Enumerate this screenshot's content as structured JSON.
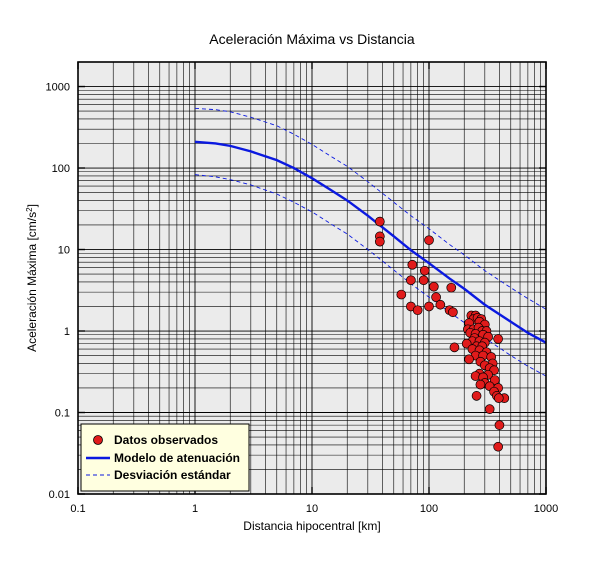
{
  "chart_data": {
    "type": "scatter",
    "title": "Aceleración Máxima vs Distancia",
    "xlabel": "Distancia hipocentral [km]",
    "ylabel_main": "Aceleración Máxima [cm/s",
    "ylabel_sup": "2",
    "ylabel_end": "]",
    "x_scale": "log",
    "y_scale": "log",
    "xlim": [
      0.1,
      1000
    ],
    "ylim": [
      0.01,
      2000
    ],
    "x_ticks": [
      {
        "value": 0.1,
        "label": "0.1"
      },
      {
        "value": 1,
        "label": "1"
      },
      {
        "value": 10,
        "label": "10"
      },
      {
        "value": 100,
        "label": "100"
      },
      {
        "value": 1000,
        "label": "1000"
      }
    ],
    "y_ticks": [
      {
        "value": 0.01,
        "label": "0.01"
      },
      {
        "value": 0.1,
        "label": "0.1"
      },
      {
        "value": 1,
        "label": "1"
      },
      {
        "value": 10,
        "label": "10"
      },
      {
        "value": 100,
        "label": "100"
      },
      {
        "value": 1000,
        "label": "1000"
      }
    ],
    "grid": true,
    "legend_position": "bottom-left",
    "colors": {
      "plot_background": "#ebebeb",
      "grid": "#000000",
      "observed": "#e01b1b",
      "model": "#0b19e0",
      "deviation": "#0b19e0",
      "legend_background": "#ffffe0"
    },
    "series": [
      {
        "name": "Datos observados",
        "kind": "scatter",
        "points": [
          [
            38,
            22
          ],
          [
            38,
            14.5
          ],
          [
            38,
            12.5
          ],
          [
            100,
            13
          ],
          [
            72,
            6.5
          ],
          [
            92,
            5.5
          ],
          [
            70,
            4.2
          ],
          [
            90,
            4.2
          ],
          [
            110,
            3.5
          ],
          [
            155,
            3.4
          ],
          [
            58,
            2.8
          ],
          [
            115,
            2.6
          ],
          [
            125,
            2.1
          ],
          [
            70,
            2.0
          ],
          [
            100,
            2.0
          ],
          [
            80,
            1.8
          ],
          [
            150,
            1.8
          ],
          [
            160,
            1.7
          ],
          [
            230,
            1.55
          ],
          [
            250,
            1.55
          ],
          [
            240,
            1.4
          ],
          [
            260,
            1.45
          ],
          [
            280,
            1.4
          ],
          [
            220,
            1.25
          ],
          [
            270,
            1.3
          ],
          [
            300,
            1.2
          ],
          [
            215,
            1.05
          ],
          [
            240,
            1.05
          ],
          [
            265,
            1.1
          ],
          [
            285,
            1.0
          ],
          [
            310,
            1.0
          ],
          [
            225,
            0.95
          ],
          [
            250,
            0.92
          ],
          [
            290,
            0.9
          ],
          [
            320,
            0.85
          ],
          [
            245,
            0.82
          ],
          [
            390,
            0.8
          ],
          [
            235,
            0.75
          ],
          [
            270,
            0.75
          ],
          [
            300,
            0.72
          ],
          [
            210,
            0.7
          ],
          [
            255,
            0.65
          ],
          [
            285,
            0.65
          ],
          [
            165,
            0.63
          ],
          [
            235,
            0.6
          ],
          [
            270,
            0.58
          ],
          [
            310,
            0.55
          ],
          [
            250,
            0.5
          ],
          [
            290,
            0.5
          ],
          [
            340,
            0.48
          ],
          [
            220,
            0.45
          ],
          [
            275,
            0.42
          ],
          [
            350,
            0.4
          ],
          [
            300,
            0.38
          ],
          [
            330,
            0.35
          ],
          [
            360,
            0.33
          ],
          [
            270,
            0.3
          ],
          [
            320,
            0.29
          ],
          [
            250,
            0.28
          ],
          [
            290,
            0.27
          ],
          [
            365,
            0.25
          ],
          [
            300,
            0.23
          ],
          [
            275,
            0.22
          ],
          [
            330,
            0.21
          ],
          [
            390,
            0.2
          ],
          [
            360,
            0.18
          ],
          [
            255,
            0.16
          ],
          [
            380,
            0.16
          ],
          [
            440,
            0.15
          ],
          [
            395,
            0.15
          ],
          [
            330,
            0.11
          ],
          [
            400,
            0.07
          ],
          [
            390,
            0.038
          ]
        ]
      },
      {
        "name": "Modelo de atenuación",
        "kind": "line",
        "style": "solid",
        "points": [
          [
            1,
            210
          ],
          [
            1.5,
            200
          ],
          [
            2,
            187
          ],
          [
            3,
            160
          ],
          [
            5,
            125
          ],
          [
            7,
            100
          ],
          [
            10,
            75
          ],
          [
            15,
            52
          ],
          [
            20,
            40
          ],
          [
            30,
            26
          ],
          [
            50,
            14.5
          ],
          [
            70,
            9.8
          ],
          [
            100,
            6.8
          ],
          [
            150,
            4.4
          ],
          [
            200,
            3.3
          ],
          [
            300,
            2.1
          ],
          [
            500,
            1.3
          ],
          [
            700,
            0.95
          ],
          [
            1000,
            0.72
          ]
        ]
      },
      {
        "name": "Desviación estándar",
        "kind": "line",
        "style": "dashed",
        "points": [
          [
            1,
            540
          ],
          [
            1.5,
            520
          ],
          [
            2,
            490
          ],
          [
            3,
            420
          ],
          [
            5,
            330
          ],
          [
            7,
            260
          ],
          [
            10,
            195
          ],
          [
            15,
            135
          ],
          [
            20,
            105
          ],
          [
            30,
            68
          ],
          [
            50,
            38
          ],
          [
            70,
            26
          ],
          [
            100,
            18
          ],
          [
            150,
            11.5
          ],
          [
            200,
            8.6
          ],
          [
            300,
            5.5
          ],
          [
            500,
            3.4
          ],
          [
            700,
            2.5
          ],
          [
            1000,
            1.85
          ]
        ]
      },
      {
        "name": "Desviación estándar",
        "kind": "line",
        "style": "dashed",
        "show_in_legend": false,
        "points": [
          [
            1,
            83
          ],
          [
            1.5,
            78
          ],
          [
            2,
            72
          ],
          [
            3,
            62
          ],
          [
            5,
            48
          ],
          [
            7,
            38
          ],
          [
            10,
            29
          ],
          [
            15,
            20
          ],
          [
            20,
            15.5
          ],
          [
            30,
            10
          ],
          [
            50,
            5.6
          ],
          [
            70,
            3.8
          ],
          [
            100,
            2.6
          ],
          [
            150,
            1.7
          ],
          [
            200,
            1.27
          ],
          [
            300,
            0.82
          ],
          [
            500,
            0.5
          ],
          [
            700,
            0.37
          ],
          [
            1000,
            0.28
          ]
        ]
      }
    ],
    "legend": [
      {
        "label": "Datos observados",
        "symbol": "circle"
      },
      {
        "label": "Modelo de atenuación",
        "symbol": "solid-line"
      },
      {
        "label": "Desviación estándar",
        "symbol": "dashed-line"
      }
    ]
  }
}
